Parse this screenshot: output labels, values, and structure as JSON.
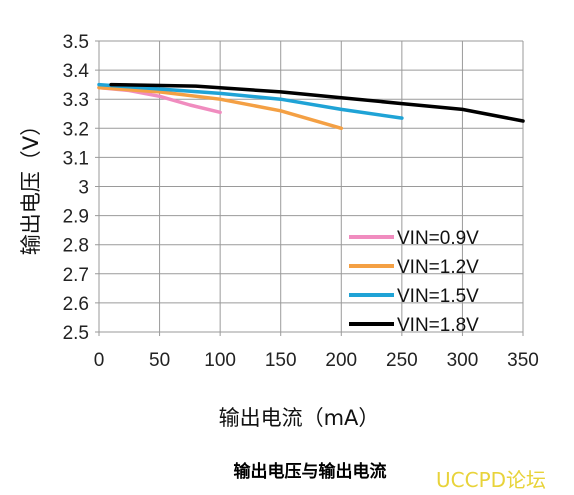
{
  "chart_data": {
    "type": "line",
    "title": "输出电压与输出电流",
    "xlabel": "输出电流（mA）",
    "ylabel": "输出电压（V）",
    "xlim": [
      0,
      350
    ],
    "ylim": [
      2.5,
      3.5
    ],
    "x_ticks": [
      "0",
      "50",
      "100",
      "150",
      "200",
      "250",
      "300",
      "350"
    ],
    "y_ticks": [
      "2.5",
      "2.6",
      "2.7",
      "2.8",
      "2.9",
      "3",
      "3.1",
      "3.2",
      "3.3",
      "3.4",
      "3.5"
    ],
    "grid": true,
    "legend_position": "bottom-right",
    "series": [
      {
        "name": "VIN=0.9V",
        "color": "#f08cbf",
        "points": [
          [
            0,
            3.34
          ],
          [
            25,
            3.33
          ],
          [
            50,
            3.31
          ],
          [
            75,
            3.28
          ],
          [
            100,
            3.255
          ]
        ]
      },
      {
        "name": "VIN=1.2V",
        "color": "#f4a044",
        "points": [
          [
            0,
            3.34
          ],
          [
            50,
            3.325
          ],
          [
            100,
            3.3
          ],
          [
            150,
            3.26
          ],
          [
            200,
            3.2
          ]
        ]
      },
      {
        "name": "VIN=1.5V",
        "color": "#1fa3d6",
        "points": [
          [
            0,
            3.35
          ],
          [
            50,
            3.335
          ],
          [
            100,
            3.32
          ],
          [
            150,
            3.3
          ],
          [
            200,
            3.265
          ],
          [
            250,
            3.235
          ]
        ]
      },
      {
        "name": "VIN=1.8V",
        "color": "#000000",
        "points": [
          [
            10,
            3.35
          ],
          [
            80,
            3.345
          ],
          [
            150,
            3.325
          ],
          [
            200,
            3.305
          ],
          [
            250,
            3.285
          ],
          [
            300,
            3.265
          ],
          [
            350,
            3.225
          ]
        ]
      }
    ]
  },
  "watermark": "UCCPD论坛"
}
